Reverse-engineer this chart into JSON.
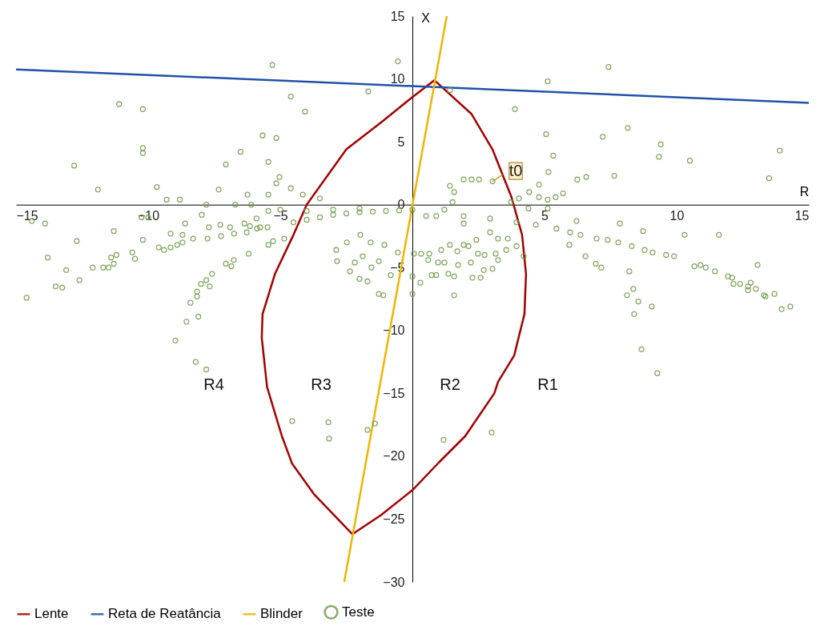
{
  "chart_data": {
    "type": "line",
    "xlabel": "R",
    "ylabel": "X",
    "xlim": [
      -15,
      15
    ],
    "ylim": [
      -30,
      15
    ],
    "xticks": [
      -15,
      -10,
      -5,
      5,
      10,
      15
    ],
    "yticks": [
      -30,
      -25,
      -20,
      -15,
      -10,
      -5,
      0,
      5,
      10,
      15
    ],
    "legend": "bottom",
    "line_style": "solid",
    "series": [
      {
        "name": "Lente",
        "color": "#a50000",
        "x": [
          0.88,
          2.24,
          3.03,
          3.75,
          4.15,
          4.3,
          4.24,
          3.85,
          3.24,
          3.1,
          2.0,
          1.0,
          0,
          -1.2,
          -2.27,
          -3.73,
          -4.55,
          -4.94,
          -5.5,
          -5.7,
          -5.67,
          -5.2,
          -4.5,
          -4.0,
          -2.5,
          -1.15,
          -0.15,
          0.85
        ],
        "values": [
          9.8,
          7.2,
          4.4,
          0.6,
          -2.4,
          -5.5,
          -8.7,
          -12,
          -14.1,
          -15,
          -18.4,
          -20.5,
          -22.7,
          -24.7,
          -26.2,
          -23.0,
          -20.6,
          -18.4,
          -14.5,
          -10.6,
          -8.7,
          -5.5,
          -2.4,
          0,
          4.4,
          6.6,
          8.3,
          9.93
        ]
      },
      {
        "name": "Reta de Reatância",
        "color": "#2152a8",
        "x": [
          -15,
          15
        ],
        "values": [
          10.75,
          8.1
        ]
      },
      {
        "name": "Blinder",
        "color": "#f2b400",
        "x": [
          1.3,
          -2.58
        ],
        "values": [
          15,
          -30
        ]
      },
      {
        "name": "Teste",
        "type": "scatter",
        "marker": "circle",
        "color": "#6f9e4c",
        "x": [
          -5.3,
          -0.55,
          -1.67,
          -4.6,
          -4.06,
          -11.1,
          -10.2,
          -5.67,
          -5.15,
          -6.5,
          -7.06,
          -5.45,
          -10.2,
          -10.2,
          -12.8,
          -5.03,
          -5.15,
          -4.6,
          -11.9,
          -9.67,
          -7.33,
          -6.24,
          -5.45,
          -4.15,
          -9.3,
          -8.8,
          -7.8,
          -6.7,
          -6.1,
          -14.4,
          -13.9,
          -10.25,
          -10.0,
          -7.97,
          -5.45,
          -5.0,
          -5.9,
          -11.3,
          -12.7,
          -13.8,
          -13.1,
          -12.6,
          -13.5,
          -13.25,
          -14.6,
          -12.1,
          -11.7,
          -11.5,
          -11.3,
          -11.4,
          -11.2,
          -10.6,
          -10.5,
          -10.2,
          -9.6,
          -9.4,
          -9.15,
          -9.15,
          -8.9,
          -8.7,
          -8.7,
          -8.6,
          -8.3,
          -7.75,
          -7.7,
          -7.27,
          -7.24,
          -6.9,
          -6.75,
          -6.36,
          -6.27,
          -6.15,
          -5.88,
          -5.76,
          -5.48,
          -5.27,
          -5.45,
          -4.85,
          -6.2,
          -6.76,
          -7.06,
          -6.85,
          -7.58,
          -7.8,
          -8.0,
          -7.67,
          -8.15,
          -8.15,
          -8.4,
          -8.55,
          -8.1,
          -8.97,
          -8.2,
          -7.8,
          -2.88,
          -2.85,
          -2.36,
          -2.0,
          -1.7,
          -1.27,
          -1.1,
          -1.55,
          -2.18,
          -1.88,
          -1.27,
          -0.82,
          -0.55,
          -1.06,
          -2.48,
          -1.97,
          -1.58,
          -4.5,
          -4.0,
          -3.5,
          -3.0,
          -2.5,
          -2.0,
          -1.5,
          -1.0,
          -0.5,
          0,
          -4.0,
          -3.0,
          -2.0,
          -3.5,
          7.42,
          5.12,
          1.42,
          3.88,
          8.15,
          5.06,
          7.2,
          9.4,
          9.33,
          10.5,
          13.9,
          13.5,
          5.33,
          5.15,
          6.24,
          6.58,
          7.64,
          4.79,
          4.42,
          4.79,
          5.12,
          5.42,
          5.7,
          4.03,
          3.73,
          4.39,
          5.12,
          3.03,
          2.52,
          2.24,
          1.94,
          1.42,
          1.58,
          1.52,
          1.21,
          0.52,
          0.9,
          1.94,
          2.94,
          3.94,
          4.67,
          5.45,
          5.97,
          6.36,
          6.97,
          7.39,
          7.79,
          8.3,
          8.79,
          9.09,
          9.6,
          9.9,
          1.94,
          2.94,
          2.42,
          1.94,
          3.24,
          10.3,
          11.6,
          6.21,
          7.85,
          8.73,
          5.94,
          6.55,
          6.94,
          7.15,
          8.21,
          10.67,
          10.9,
          11.1,
          11.45,
          11.94,
          12.1,
          12.15,
          12.4,
          12.7,
          12.8,
          12.7,
          13.0,
          13.06,
          13.3,
          13.36,
          13.7,
          13.97,
          14.3,
          8.36,
          8.12,
          8.55,
          9.06,
          8.39,
          8.67,
          9.27,
          0.06,
          0.33,
          0.64,
          0.6,
          0.97,
          1.21,
          0.73,
          0.9,
          1.36,
          1.58,
          0.3,
          1.58,
          2.27,
          2.58,
          2.7,
          3.03,
          2.21,
          1.73,
          2.48,
          2.73,
          3.15,
          3.24,
          3.55,
          3.94,
          4.21,
          1.09,
          1.42,
          1.7,
          2.12,
          3.61,
          0,
          0,
          -4.55,
          -3.18,
          -3.15,
          -1.7,
          -1.42,
          1.18,
          3.0
        ],
        "values": [
          11.1,
          11.4,
          9.0,
          8.6,
          7.4,
          8.0,
          7.6,
          5.5,
          5.3,
          4.2,
          3.2,
          3.4,
          4.5,
          4.1,
          3.1,
          2.2,
          1.7,
          1.3,
          1.2,
          1.4,
          1.2,
          0.8,
          0.8,
          0.8,
          0.4,
          0.4,
          0,
          0,
          0,
          -1.3,
          -1.5,
          -1.0,
          -1.0,
          -0.8,
          -0.5,
          -0.4,
          -1.1,
          -2.1,
          -2.9,
          -4.2,
          -5.2,
          -6.0,
          -6.5,
          -6.6,
          -7.4,
          -5.0,
          -5.0,
          -5.0,
          -4.7,
          -4.2,
          -4.0,
          -3.8,
          -4.3,
          -2.8,
          -3.4,
          -3.6,
          -3.4,
          -2.3,
          -3.2,
          -3.0,
          -2.4,
          -1.5,
          -2.7,
          -2.7,
          -1.8,
          -1.6,
          -2.5,
          -1.8,
          -2.3,
          -1.5,
          -2.2,
          -1.7,
          -1.9,
          -1.8,
          -1.8,
          -2.9,
          -3.2,
          -2.7,
          -3.9,
          -4.4,
          -4.7,
          -4.9,
          -5.5,
          -6.0,
          -6.3,
          -6.5,
          -6.9,
          -7.3,
          -7.8,
          -9.3,
          -8.9,
          -10.8,
          -12.5,
          -13.1,
          -3.6,
          -4.5,
          -5.3,
          -5.9,
          -6.1,
          -7.1,
          -7.2,
          -5.0,
          -4.6,
          -4.1,
          -4.5,
          -5.6,
          -3.8,
          -3.2,
          -3.0,
          -2.4,
          -3.0,
          -1.4,
          -1.2,
          -1.0,
          -0.8,
          -0.7,
          -0.6,
          -0.55,
          -0.5,
          -0.45,
          -0.4,
          -0.5,
          -0.4,
          -0.3,
          0.5,
          10.95,
          9.8,
          9.1,
          7.6,
          6.1,
          5.6,
          5.4,
          4.8,
          3.8,
          3.5,
          4.3,
          2.1,
          3.9,
          2.6,
          2.0,
          2.2,
          2.3,
          1.6,
          1.0,
          0.6,
          0.4,
          0.6,
          0.9,
          0.5,
          0.2,
          -0.3,
          -0.3,
          1.85,
          2.0,
          2.0,
          2.0,
          1.5,
          1.0,
          0.2,
          -0.4,
          -0.9,
          -0.9,
          -0.9,
          -1.1,
          -1.4,
          -1.6,
          -1.9,
          -2.2,
          -2.4,
          -2.7,
          -2.8,
          -3.0,
          -3.3,
          -3.6,
          -3.8,
          -4.0,
          -4.1,
          -1.5,
          -2.2,
          -2.8,
          -3.2,
          -2.7,
          -2.4,
          -2.4,
          -1.3,
          -1.5,
          -2.1,
          -3.2,
          -4.1,
          -4.7,
          -5.0,
          -5.3,
          -4.9,
          -4.8,
          -5.0,
          -5.3,
          -5.7,
          -5.8,
          -6.3,
          -6.3,
          -6.5,
          -6.2,
          -6.8,
          -6.7,
          -4.8,
          -7.2,
          -7.3,
          -7.1,
          -8.3,
          -8.1,
          -6.7,
          -7.2,
          -7.7,
          -8.1,
          -8.7,
          -11.5,
          -13.4,
          -3.9,
          -3.9,
          -3.9,
          -4.4,
          -4.6,
          -4.6,
          -5.6,
          -5.6,
          -5.5,
          -5.7,
          -6.2,
          -7.2,
          -5.8,
          -5.8,
          -5.2,
          -5.1,
          -4.6,
          -4.8,
          -3.9,
          -4.0,
          -3.9,
          -4.4,
          -3.6,
          -3.3,
          -4.1,
          -3.6,
          -3.2,
          -3.7,
          -3.3,
          -2.7,
          -5.7,
          -7.1,
          -17.2,
          -17.3,
          -18.6,
          -17.9,
          -17.4,
          -18.7,
          -18.1
        ]
      }
    ],
    "annotations": [
      "R1",
      "R2",
      "R3",
      "R4",
      {
        "text": "t0",
        "x": 3.03,
        "y": 1.85
      }
    ]
  }
}
